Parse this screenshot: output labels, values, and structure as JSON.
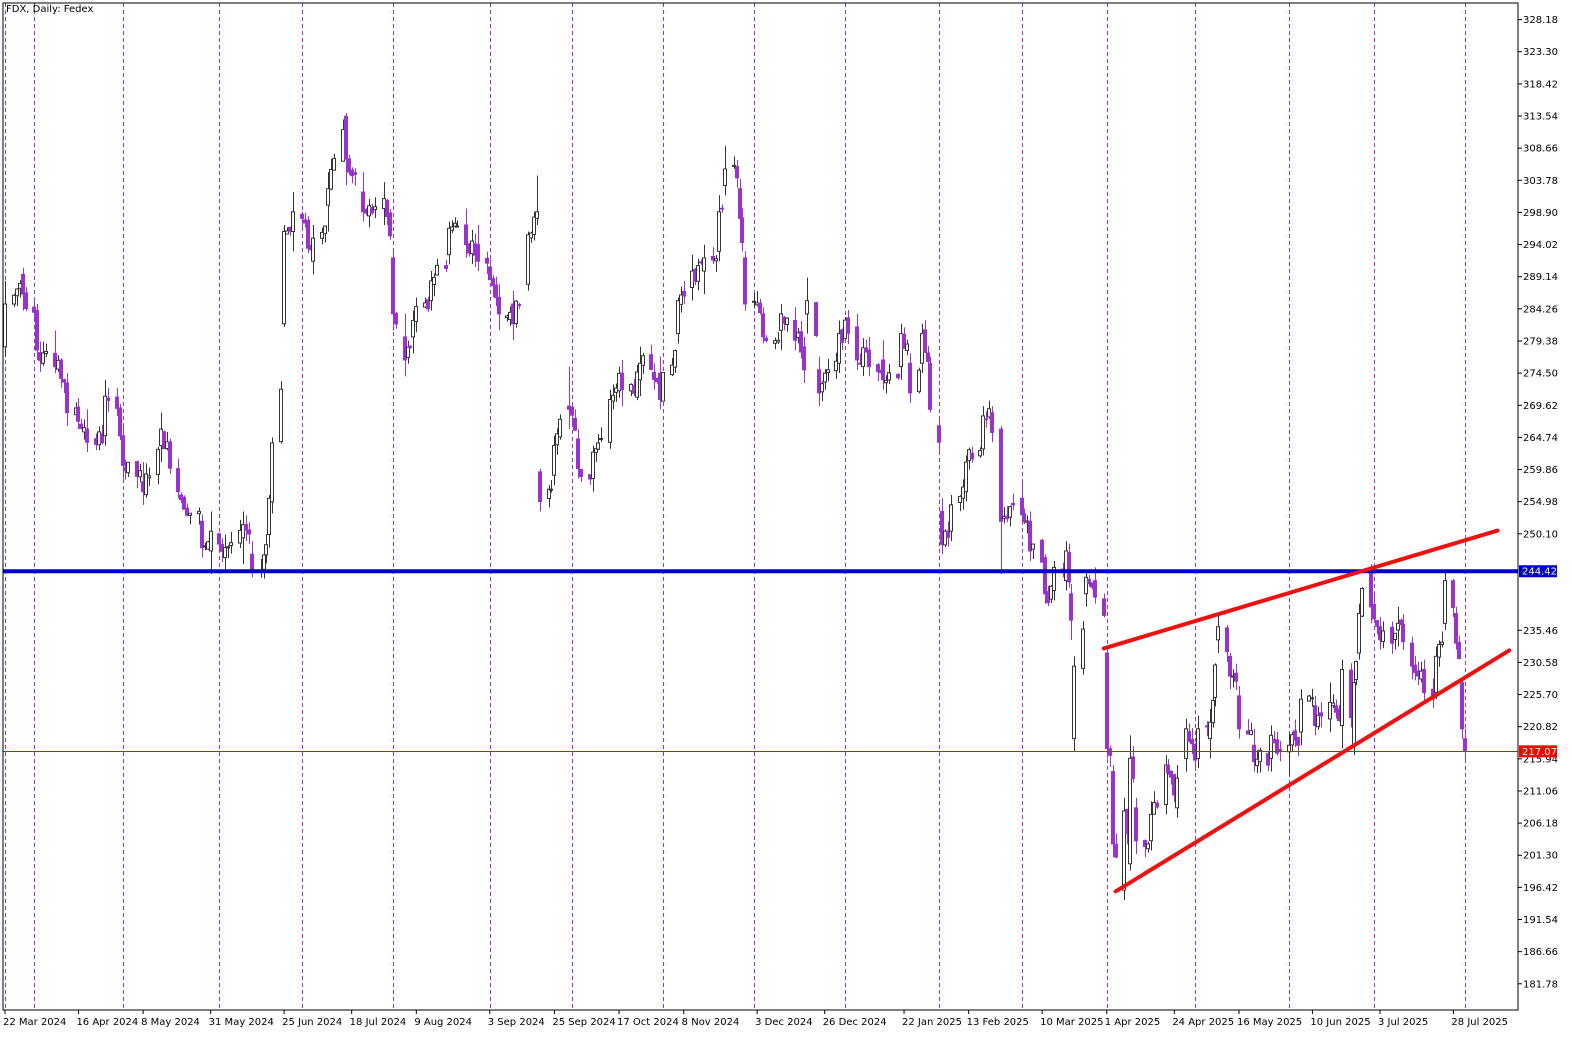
{
  "chart_title": "FDX, Daily:  Fedex",
  "colors": {
    "bull": "#333333",
    "bear": "#9933cc",
    "vgrid": "#9933cc",
    "support_line": "#0000cc",
    "price_line": "#ff0000",
    "trend_line": "#ee1111"
  },
  "chart_data": {
    "type": "candlestick",
    "symbol": "FDX",
    "timeframe": "Daily",
    "name": "Fedex",
    "ylim": [
      177.8,
      330.7
    ],
    "y_ticks": [
      328.18,
      323.3,
      318.42,
      313.54,
      308.66,
      303.78,
      298.9,
      294.02,
      289.14,
      284.26,
      279.38,
      274.5,
      269.62,
      264.74,
      259.86,
      254.98,
      250.1,
      235.46,
      230.58,
      225.7,
      220.82,
      215.94,
      211.06,
      206.18,
      201.3,
      196.42,
      191.54,
      186.66,
      181.78
    ],
    "date_range": [
      "2024-03-22",
      "2025-08-04"
    ],
    "x_ticks": [
      "22 Mar 2024",
      "16 Apr 2024",
      "8 May 2024",
      "31 May 2024",
      "25 Jun 2024",
      "18 Jul 2024",
      "9 Aug 2024",
      "3 Sep 2024",
      "25 Sep 2024",
      "17 Oct 2024",
      "8 Nov 2024",
      "3 Dec 2024",
      "26 Dec 2024",
      "22 Jan 2025",
      "13 Feb 2025",
      "10 Mar 2025",
      "1 Apr 2025",
      "24 Apr 2025",
      "16 May 2025",
      "10 Jun 2025",
      "3 Jul 2025",
      "28 Jul 2025"
    ],
    "separators": [
      "2024-03-22",
      "2024-04-01",
      "2024-05-01",
      "2024-06-03",
      "2024-07-01",
      "2024-08-01",
      "2024-09-03",
      "2024-10-01",
      "2024-11-01",
      "2024-12-02",
      "2025-01-02",
      "2025-02-03",
      "2025-03-03",
      "2025-04-01",
      "2025-05-01",
      "2025-06-02",
      "2025-07-01",
      "2025-08-01"
    ],
    "anchors": [
      {
        "date": "2024-03-22",
        "o": 278.5,
        "h": 288.5,
        "l": 277.0,
        "c": 285.0
      },
      {
        "date": "2024-03-28",
        "o": 289.5,
        "h": 290.5,
        "l": 284.0,
        "c": 286.5
      },
      {
        "date": "2024-04-02",
        "o": 284.0,
        "h": 285.0,
        "l": 276.5,
        "c": 278.0
      },
      {
        "date": "2024-04-08",
        "o": 277.5,
        "h": 281.0,
        "l": 274.5,
        "c": 275.5
      },
      {
        "date": "2024-04-12",
        "o": 273.0,
        "h": 274.5,
        "l": 266.5,
        "c": 268.5
      },
      {
        "date": "2024-04-19",
        "o": 266.0,
        "h": 269.0,
        "l": 262.5,
        "c": 264.0
      },
      {
        "date": "2024-04-25",
        "o": 265.0,
        "h": 273.5,
        "l": 263.5,
        "c": 271.0
      },
      {
        "date": "2024-05-01",
        "o": 265.0,
        "h": 266.5,
        "l": 258.5,
        "c": 260.5
      },
      {
        "date": "2024-05-08",
        "o": 258.0,
        "h": 261.0,
        "l": 254.5,
        "c": 256.5
      },
      {
        "date": "2024-05-14",
        "o": 263.5,
        "h": 268.5,
        "l": 261.0,
        "c": 266.0
      },
      {
        "date": "2024-05-20",
        "o": 260.0,
        "h": 261.5,
        "l": 255.5,
        "c": 256.5
      },
      {
        "date": "2024-05-28",
        "o": 252.0,
        "h": 253.0,
        "l": 246.5,
        "c": 248.0
      },
      {
        "date": "2024-05-31",
        "o": 247.5,
        "h": 253.5,
        "l": 244.0,
        "c": 250.5
      },
      {
        "date": "2024-06-05",
        "o": 246.5,
        "h": 250.0,
        "l": 244.5,
        "c": 248.0
      },
      {
        "date": "2024-06-11",
        "o": 249.5,
        "h": 253.5,
        "l": 245.5,
        "c": 251.5
      },
      {
        "date": "2024-06-14",
        "o": 247.0,
        "h": 249.0,
        "l": 243.5,
        "c": 244.5
      },
      {
        "date": "2024-06-20",
        "o": 250.0,
        "h": 256.0,
        "l": 248.0,
        "c": 255.5
      },
      {
        "date": "2024-06-25",
        "o": 282.0,
        "h": 297.0,
        "l": 281.5,
        "c": 296.0
      },
      {
        "date": "2024-06-28",
        "o": 296.0,
        "h": 302.0,
        "l": 293.0,
        "c": 299.0
      },
      {
        "date": "2024-07-05",
        "o": 291.5,
        "h": 297.0,
        "l": 289.5,
        "c": 295.0
      },
      {
        "date": "2024-07-10",
        "o": 300.0,
        "h": 305.0,
        "l": 296.0,
        "c": 302.5
      },
      {
        "date": "2024-07-16",
        "o": 313.5,
        "h": 314.0,
        "l": 303.0,
        "c": 307.0
      },
      {
        "date": "2024-07-22",
        "o": 302.0,
        "h": 305.0,
        "l": 297.5,
        "c": 299.0
      },
      {
        "date": "2024-07-29",
        "o": 299.5,
        "h": 303.5,
        "l": 297.0,
        "c": 301.0
      },
      {
        "date": "2024-08-01",
        "o": 292.0,
        "h": 293.5,
        "l": 281.0,
        "c": 283.5
      },
      {
        "date": "2024-08-05",
        "o": 280.0,
        "h": 283.5,
        "l": 274.0,
        "c": 276.5
      },
      {
        "date": "2024-08-08",
        "o": 280.0,
        "h": 284.0,
        "l": 277.5,
        "c": 282.5
      },
      {
        "date": "2024-08-14",
        "o": 285.5,
        "h": 290.0,
        "l": 284.0,
        "c": 288.5
      },
      {
        "date": "2024-08-20",
        "o": 292.5,
        "h": 297.5,
        "l": 291.0,
        "c": 296.5
      },
      {
        "date": "2024-08-26",
        "o": 297.0,
        "h": 299.5,
        "l": 292.0,
        "c": 294.0
      },
      {
        "date": "2024-08-30",
        "o": 294.0,
        "h": 297.0,
        "l": 290.0,
        "c": 291.5
      },
      {
        "date": "2024-09-06",
        "o": 286.0,
        "h": 288.0,
        "l": 281.0,
        "c": 283.5
      },
      {
        "date": "2024-09-11",
        "o": 285.0,
        "h": 287.0,
        "l": 279.5,
        "c": 282.0
      },
      {
        "date": "2024-09-16",
        "o": 288.0,
        "h": 296.0,
        "l": 287.0,
        "c": 295.5
      },
      {
        "date": "2024-09-19",
        "o": 298.0,
        "h": 304.5,
        "l": 297.0,
        "c": 299.0
      },
      {
        "date": "2024-09-20",
        "o": 259.5,
        "h": 260.0,
        "l": 253.5,
        "c": 255.0
      },
      {
        "date": "2024-09-25",
        "o": 259.0,
        "h": 265.0,
        "l": 257.5,
        "c": 263.5
      },
      {
        "date": "2024-09-30",
        "o": 269.5,
        "h": 275.5,
        "l": 266.0,
        "c": 269.0
      },
      {
        "date": "2024-10-03",
        "o": 264.5,
        "h": 266.0,
        "l": 258.5,
        "c": 260.0
      },
      {
        "date": "2024-10-08",
        "o": 258.5,
        "h": 263.5,
        "l": 256.5,
        "c": 262.5
      },
      {
        "date": "2024-10-14",
        "o": 264.0,
        "h": 272.0,
        "l": 263.0,
        "c": 270.5
      },
      {
        "date": "2024-10-18",
        "o": 274.5,
        "h": 276.5,
        "l": 269.5,
        "c": 272.0
      },
      {
        "date": "2024-10-24",
        "o": 273.5,
        "h": 278.5,
        "l": 271.0,
        "c": 276.0
      },
      {
        "date": "2024-10-31",
        "o": 274.5,
        "h": 277.0,
        "l": 269.0,
        "c": 270.5
      },
      {
        "date": "2024-11-06",
        "o": 280.5,
        "h": 286.0,
        "l": 279.0,
        "c": 285.5
      },
      {
        "date": "2024-11-11",
        "o": 287.5,
        "h": 292.5,
        "l": 285.5,
        "c": 290.0
      },
      {
        "date": "2024-11-15",
        "o": 290.0,
        "h": 294.0,
        "l": 286.5,
        "c": 292.0
      },
      {
        "date": "2024-11-20",
        "o": 293.0,
        "h": 301.5,
        "l": 291.5,
        "c": 299.0
      },
      {
        "date": "2024-11-22",
        "o": 303.0,
        "h": 309.0,
        "l": 301.5,
        "c": 305.5
      },
      {
        "date": "2024-11-27",
        "o": 302.5,
        "h": 304.0,
        "l": 296.5,
        "c": 298.0
      },
      {
        "date": "2024-11-29",
        "o": 292.0,
        "h": 293.0,
        "l": 284.0,
        "c": 285.0
      },
      {
        "date": "2024-12-05",
        "o": 283.5,
        "h": 284.5,
        "l": 279.0,
        "c": 280.0
      },
      {
        "date": "2024-12-11",
        "o": 281.0,
        "h": 285.0,
        "l": 278.0,
        "c": 283.5
      },
      {
        "date": "2024-12-16",
        "o": 282.5,
        "h": 284.5,
        "l": 278.0,
        "c": 279.5
      },
      {
        "date": "2024-12-19",
        "o": 278.5,
        "h": 280.0,
        "l": 273.0,
        "c": 275.0
      },
      {
        "date": "2024-12-20",
        "o": 283.5,
        "h": 289.0,
        "l": 280.5,
        "c": 285.5
      },
      {
        "date": "2024-12-24",
        "o": 275.0,
        "h": 277.0,
        "l": 269.5,
        "c": 271.5
      },
      {
        "date": "2024-12-31",
        "o": 276.0,
        "h": 282.5,
        "l": 274.5,
        "c": 280.5
      },
      {
        "date": "2025-01-06",
        "o": 281.5,
        "h": 283.5,
        "l": 275.0,
        "c": 276.5
      },
      {
        "date": "2025-01-10",
        "o": 278.0,
        "h": 280.0,
        "l": 274.0,
        "c": 275.5
      },
      {
        "date": "2025-01-15",
        "o": 276.5,
        "h": 279.5,
        "l": 272.0,
        "c": 273.5
      },
      {
        "date": "2025-01-21",
        "o": 275.5,
        "h": 282.0,
        "l": 273.5,
        "c": 280.5
      },
      {
        "date": "2025-01-24",
        "o": 276.0,
        "h": 277.5,
        "l": 270.0,
        "c": 271.5
      },
      {
        "date": "2025-01-28",
        "o": 276.0,
        "h": 282.0,
        "l": 274.5,
        "c": 280.5
      },
      {
        "date": "2025-01-31",
        "o": 276.0,
        "h": 277.0,
        "l": 268.5,
        "c": 269.0
      },
      {
        "date": "2025-02-03",
        "o": 266.5,
        "h": 268.0,
        "l": 262.5,
        "c": 264.0
      },
      {
        "date": "2025-02-04",
        "o": 253.5,
        "h": 255.5,
        "l": 247.0,
        "c": 248.5
      },
      {
        "date": "2025-02-07",
        "o": 250.5,
        "h": 256.0,
        "l": 249.0,
        "c": 254.5
      },
      {
        "date": "2025-02-12",
        "o": 256.5,
        "h": 262.0,
        "l": 255.0,
        "c": 261.0
      },
      {
        "date": "2025-02-18",
        "o": 263.0,
        "h": 269.5,
        "l": 262.0,
        "c": 268.0
      },
      {
        "date": "2025-02-21",
        "o": 268.5,
        "h": 269.5,
        "l": 264.0,
        "c": 265.5
      },
      {
        "date": "2025-02-24",
        "o": 266.0,
        "h": 266.5,
        "l": 244.0,
        "c": 252.0
      },
      {
        "date": "2025-03-03",
        "o": 255.5,
        "h": 258.0,
        "l": 252.0,
        "c": 253.0
      },
      {
        "date": "2025-03-06",
        "o": 252.0,
        "h": 253.5,
        "l": 246.0,
        "c": 247.5
      },
      {
        "date": "2025-03-11",
        "o": 246.5,
        "h": 247.0,
        "l": 239.5,
        "c": 241.0
      },
      {
        "date": "2025-03-14",
        "o": 241.5,
        "h": 246.0,
        "l": 240.0,
        "c": 245.0
      },
      {
        "date": "2025-03-18",
        "o": 243.0,
        "h": 249.0,
        "l": 241.5,
        "c": 247.5
      },
      {
        "date": "2025-03-20",
        "o": 241.0,
        "h": 242.5,
        "l": 234.0,
        "c": 237.0
      },
      {
        "date": "2025-03-21",
        "o": 219.0,
        "h": 231.5,
        "l": 217.0,
        "c": 230.0
      },
      {
        "date": "2025-03-25",
        "o": 241.0,
        "h": 244.5,
        "l": 239.0,
        "c": 243.5
      },
      {
        "date": "2025-03-28",
        "o": 243.0,
        "h": 245.0,
        "l": 239.5,
        "c": 240.5
      },
      {
        "date": "2025-04-01",
        "o": 232.0,
        "h": 233.0,
        "l": 216.0,
        "c": 217.5
      },
      {
        "date": "2025-04-03",
        "o": 214.0,
        "h": 215.0,
        "l": 201.0,
        "c": 203.0
      },
      {
        "date": "2025-04-07",
        "o": 196.0,
        "h": 210.0,
        "l": 194.5,
        "c": 208.0
      },
      {
        "date": "2025-04-09",
        "o": 200.0,
        "h": 219.5,
        "l": 199.0,
        "c": 216.0
      },
      {
        "date": "2025-04-11",
        "o": 208.5,
        "h": 210.0,
        "l": 201.5,
        "c": 203.5
      },
      {
        "date": "2025-04-16",
        "o": 203.5,
        "h": 209.5,
        "l": 202.0,
        "c": 207.5
      },
      {
        "date": "2025-04-21",
        "o": 209.0,
        "h": 216.5,
        "l": 207.5,
        "c": 215.0
      },
      {
        "date": "2025-04-25",
        "o": 208.5,
        "h": 215.0,
        "l": 207.0,
        "c": 213.0
      },
      {
        "date": "2025-04-28",
        "o": 216.0,
        "h": 222.0,
        "l": 214.0,
        "c": 220.5
      },
      {
        "date": "2025-05-02",
        "o": 216.0,
        "h": 222.5,
        "l": 214.5,
        "c": 220.5
      },
      {
        "date": "2025-05-06",
        "o": 219.0,
        "h": 223.5,
        "l": 216.0,
        "c": 221.5
      },
      {
        "date": "2025-05-09",
        "o": 234.0,
        "h": 238.0,
        "l": 232.0,
        "c": 236.0
      },
      {
        "date": "2025-05-13",
        "o": 231.5,
        "h": 232.0,
        "l": 226.5,
        "c": 228.5
      },
      {
        "date": "2025-05-16",
        "o": 225.5,
        "h": 227.0,
        "l": 219.0,
        "c": 220.5
      },
      {
        "date": "2025-05-21",
        "o": 218.0,
        "h": 220.5,
        "l": 214.0,
        "c": 215.5
      },
      {
        "date": "2025-05-27",
        "o": 216.0,
        "h": 221.0,
        "l": 214.0,
        "c": 219.5
      },
      {
        "date": "2025-06-02",
        "o": 217.0,
        "h": 220.0,
        "l": 213.5,
        "c": 218.0
      },
      {
        "date": "2025-06-06",
        "o": 220.0,
        "h": 226.5,
        "l": 218.0,
        "c": 225.0
      },
      {
        "date": "2025-06-11",
        "o": 224.0,
        "h": 225.5,
        "l": 219.5,
        "c": 221.0
      },
      {
        "date": "2025-06-16",
        "o": 222.0,
        "h": 227.5,
        "l": 220.0,
        "c": 224.5
      },
      {
        "date": "2025-06-20",
        "o": 221.0,
        "h": 231.0,
        "l": 217.5,
        "c": 229.5
      },
      {
        "date": "2025-06-24",
        "o": 218.0,
        "h": 230.0,
        "l": 216.5,
        "c": 227.5
      },
      {
        "date": "2025-06-26",
        "o": 232.0,
        "h": 239.5,
        "l": 231.0,
        "c": 238.0
      },
      {
        "date": "2025-06-30",
        "o": 245.0,
        "h": 245.5,
        "l": 236.5,
        "c": 239.0
      },
      {
        "date": "2025-07-03",
        "o": 236.0,
        "h": 237.5,
        "l": 232.5,
        "c": 234.0
      },
      {
        "date": "2025-07-09",
        "o": 235.5,
        "h": 239.0,
        "l": 233.0,
        "c": 236.5
      },
      {
        "date": "2025-07-14",
        "o": 233.5,
        "h": 234.5,
        "l": 228.0,
        "c": 230.0
      },
      {
        "date": "2025-07-18",
        "o": 229.5,
        "h": 231.0,
        "l": 224.5,
        "c": 226.0
      },
      {
        "date": "2025-07-22",
        "o": 226.0,
        "h": 233.0,
        "l": 225.0,
        "c": 231.5
      },
      {
        "date": "2025-07-25",
        "o": 236.5,
        "h": 244.5,
        "l": 235.5,
        "c": 243.0
      },
      {
        "date": "2025-07-29",
        "o": 238.0,
        "h": 239.0,
        "l": 232.5,
        "c": 233.5
      },
      {
        "date": "2025-07-31",
        "o": 227.5,
        "h": 228.0,
        "l": 219.0,
        "c": 220.5
      },
      {
        "date": "2025-08-01",
        "o": 219.0,
        "h": 220.5,
        "l": 215.5,
        "c": 217.1
      }
    ],
    "support_level": {
      "value": 244.42,
      "label": "244.42"
    },
    "current_price": {
      "value": 217.07,
      "label": "217.07"
    },
    "trend_lines": [
      {
        "name": "upper-channel-line",
        "from": {
          "date": "2025-03-31",
          "price": 232.7
        },
        "to": {
          "date": "2025-08-12",
          "price": 250.6
        }
      },
      {
        "name": "lower-channel-line",
        "from": {
          "date": "2025-04-04",
          "price": 195.8
        },
        "to": {
          "date": "2025-08-16",
          "price": 232.4
        }
      }
    ]
  }
}
